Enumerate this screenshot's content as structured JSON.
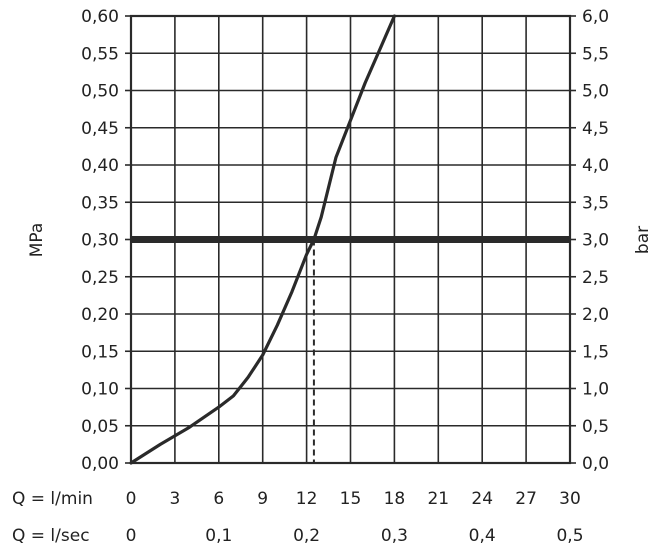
{
  "chart_data": {
    "type": "line",
    "left_axis": {
      "label": "MPa",
      "ticks": [
        "0,00",
        "0,05",
        "0,10",
        "0,15",
        "0,20",
        "0,25",
        "0,30",
        "0,35",
        "0,40",
        "0,45",
        "0,50",
        "0,55",
        "0,60"
      ],
      "ylim": [
        0,
        0.6
      ]
    },
    "right_axis": {
      "label": "bar",
      "ticks": [
        "0,0",
        "0,5",
        "1,0",
        "1,5",
        "2,0",
        "2,5",
        "3,0",
        "3,5",
        "4,0",
        "4,5",
        "5,0",
        "5,5",
        "6,0"
      ],
      "ylim": [
        0,
        6
      ]
    },
    "x_axis_lmin": {
      "label": "Q = l/min",
      "ticks": [
        "0",
        "3",
        "6",
        "9",
        "12",
        "15",
        "18",
        "21",
        "24",
        "27",
        "30"
      ],
      "xlim": [
        0,
        30
      ]
    },
    "x_axis_lsec": {
      "label": "Q = l/sec",
      "ticks": [
        "0",
        "0,1",
        "0,2",
        "0,3",
        "0,4",
        "0,5"
      ],
      "xlim": [
        0,
        0.5
      ]
    },
    "grid": true,
    "series": [
      {
        "x": [
          0,
          2,
          4,
          6,
          7,
          8,
          9,
          10,
          11,
          12,
          12.5,
          13,
          14,
          15,
          16,
          17,
          18
        ],
        "y": [
          0,
          0.025,
          0.048,
          0.075,
          0.09,
          0.115,
          0.145,
          0.185,
          0.23,
          0.28,
          0.3,
          0.33,
          0.41,
          0.46,
          0.51,
          0.555,
          0.6
        ]
      }
    ],
    "reference_line_y": 0.3,
    "reference_dashed_x": 12.5,
    "colors": {
      "line": "#2a2a2a",
      "grid": "#2a2a2a",
      "text": "#222222"
    }
  }
}
